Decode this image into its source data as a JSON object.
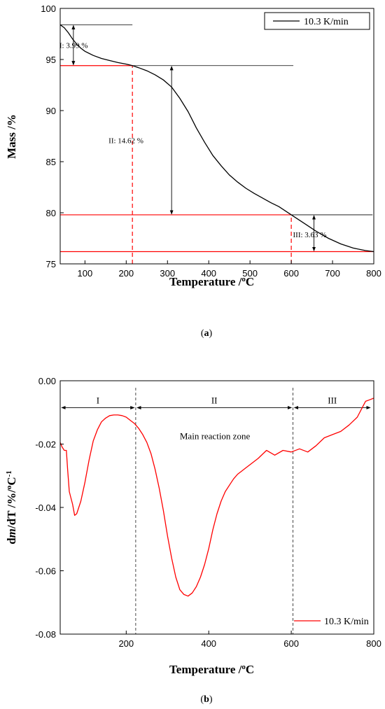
{
  "chart_data": [
    {
      "type": "line",
      "caption_open": "(",
      "caption_letter": "a",
      "caption_close": ")",
      "xlabel": "Temperature /",
      "xlabel_sup": "o",
      "xlabel_unit": "C",
      "ylabel": "Mass /%",
      "xlim": [
        40,
        800
      ],
      "ylim": [
        75,
        100
      ],
      "xticks": [
        100,
        200,
        300,
        400,
        500,
        600,
        700,
        800
      ],
      "yticks": [
        75,
        80,
        85,
        90,
        95,
        100
      ],
      "series": [
        {
          "name": "10.3 K/min",
          "color": "#000000",
          "x": [
            40,
            50,
            60,
            70,
            80,
            90,
            100,
            120,
            140,
            160,
            180,
            200,
            215,
            230,
            250,
            270,
            290,
            310,
            330,
            350,
            370,
            390,
            410,
            430,
            450,
            470,
            490,
            510,
            530,
            550,
            570,
            600,
            630,
            660,
            690,
            720,
            750,
            780,
            800
          ],
          "y": [
            98.4,
            98.1,
            97.6,
            97.0,
            96.5,
            96.1,
            95.8,
            95.4,
            95.1,
            94.9,
            94.7,
            94.55,
            94.4,
            94.2,
            93.9,
            93.5,
            93.0,
            92.3,
            91.2,
            89.9,
            88.3,
            86.9,
            85.6,
            84.6,
            83.7,
            83.0,
            82.4,
            81.9,
            81.45,
            81.0,
            80.6,
            79.8,
            79.0,
            78.2,
            77.5,
            76.95,
            76.55,
            76.3,
            76.2
          ]
        }
      ],
      "legend": {
        "placement": "top-right"
      },
      "annotations": {
        "stage1": "I: 3.99 %",
        "stage2": "II: 14.62 %",
        "stage3": "III: 3.63 %",
        "hlines_black": [
          {
            "y": 98.4,
            "x1": 40,
            "x2": 215
          },
          {
            "y": 94.4,
            "x1": 215,
            "x2": 605
          },
          {
            "y": 79.8,
            "x1": 600,
            "x2": 797
          }
        ],
        "hlines_red": [
          {
            "y": 94.4,
            "x1": 40,
            "x2": 215
          },
          {
            "y": 79.8,
            "x1": 40,
            "x2": 600
          },
          {
            "y": 76.2,
            "x1": 40,
            "x2": 800
          }
        ],
        "vlines_red_dashed": [
          {
            "x": 215,
            "y1": 75,
            "y2": 94.4
          },
          {
            "x": 600,
            "y1": 75,
            "y2": 79.8
          }
        ],
        "arrows": [
          {
            "x": 72,
            "y1": 98.4,
            "y2": 94.4,
            "label_key": "stage1"
          },
          {
            "x": 310,
            "y1": 94.4,
            "y2": 79.8,
            "label_key": "stage2"
          },
          {
            "x": 655,
            "y1": 79.8,
            "y2": 76.2,
            "label_key": "stage3"
          }
        ]
      }
    },
    {
      "type": "line",
      "caption_open": "(",
      "caption_letter": "b",
      "caption_close": ")",
      "xlabel": "Temperature /",
      "xlabel_sup": "o",
      "xlabel_unit": "C",
      "ylabel_pre": "d",
      "ylabel_ital": "m",
      "ylabel_post": "/dT /%/",
      "ylabel_sup1": "o",
      "ylabel_mid": "C",
      "ylabel_sup2": "-1",
      "xlim": [
        40,
        800
      ],
      "ylim": [
        -0.08,
        0.0
      ],
      "xticks": [
        200,
        400,
        600,
        800
      ],
      "yticks": [
        -0.08,
        -0.06,
        -0.04,
        -0.02,
        0.0
      ],
      "ytick_labels": [
        "-0.08",
        "-0.06",
        "-0.04",
        "-0.02",
        "0.00"
      ],
      "series": [
        {
          "name": "10.3 K/min",
          "color": "#ff0000",
          "x": [
            40,
            45,
            50,
            55,
            58,
            62,
            66,
            70,
            75,
            80,
            90,
            100,
            110,
            120,
            130,
            140,
            150,
            160,
            170,
            180,
            190,
            200,
            210,
            220,
            230,
            240,
            250,
            260,
            270,
            280,
            290,
            300,
            310,
            320,
            330,
            340,
            350,
            360,
            370,
            380,
            390,
            400,
            410,
            420,
            430,
            440,
            450,
            460,
            470,
            480,
            490,
            500,
            520,
            540,
            560,
            580,
            600,
            620,
            640,
            660,
            680,
            700,
            720,
            740,
            760,
            770,
            780,
            790,
            800
          ],
          "y": [
            -0.0195,
            -0.021,
            -0.022,
            -0.022,
            -0.028,
            -0.035,
            -0.037,
            -0.039,
            -0.0425,
            -0.042,
            -0.038,
            -0.032,
            -0.025,
            -0.019,
            -0.0155,
            -0.013,
            -0.0118,
            -0.011,
            -0.0108,
            -0.0108,
            -0.011,
            -0.0115,
            -0.0125,
            -0.0135,
            -0.015,
            -0.017,
            -0.0195,
            -0.023,
            -0.028,
            -0.034,
            -0.041,
            -0.049,
            -0.056,
            -0.062,
            -0.066,
            -0.0675,
            -0.068,
            -0.067,
            -0.065,
            -0.062,
            -0.058,
            -0.053,
            -0.047,
            -0.042,
            -0.038,
            -0.035,
            -0.033,
            -0.031,
            -0.0295,
            -0.0285,
            -0.0275,
            -0.0265,
            -0.0245,
            -0.022,
            -0.0235,
            -0.022,
            -0.0225,
            -0.0215,
            -0.0225,
            -0.0205,
            -0.018,
            -0.017,
            -0.016,
            -0.014,
            -0.0115,
            -0.009,
            -0.0065,
            -0.006,
            -0.0055
          ]
        }
      ],
      "legend": {
        "placement": "bottom-right"
      },
      "zones": {
        "labels": [
          "I",
          "II",
          "III"
        ],
        "boundaries": [
          40,
          223,
          604,
          795
        ],
        "arrow_y": -0.0085,
        "dashed_x": [
          223,
          604
        ],
        "text": "Main reaction zone",
        "text_x": 415,
        "text_y": -0.0185
      }
    }
  ]
}
